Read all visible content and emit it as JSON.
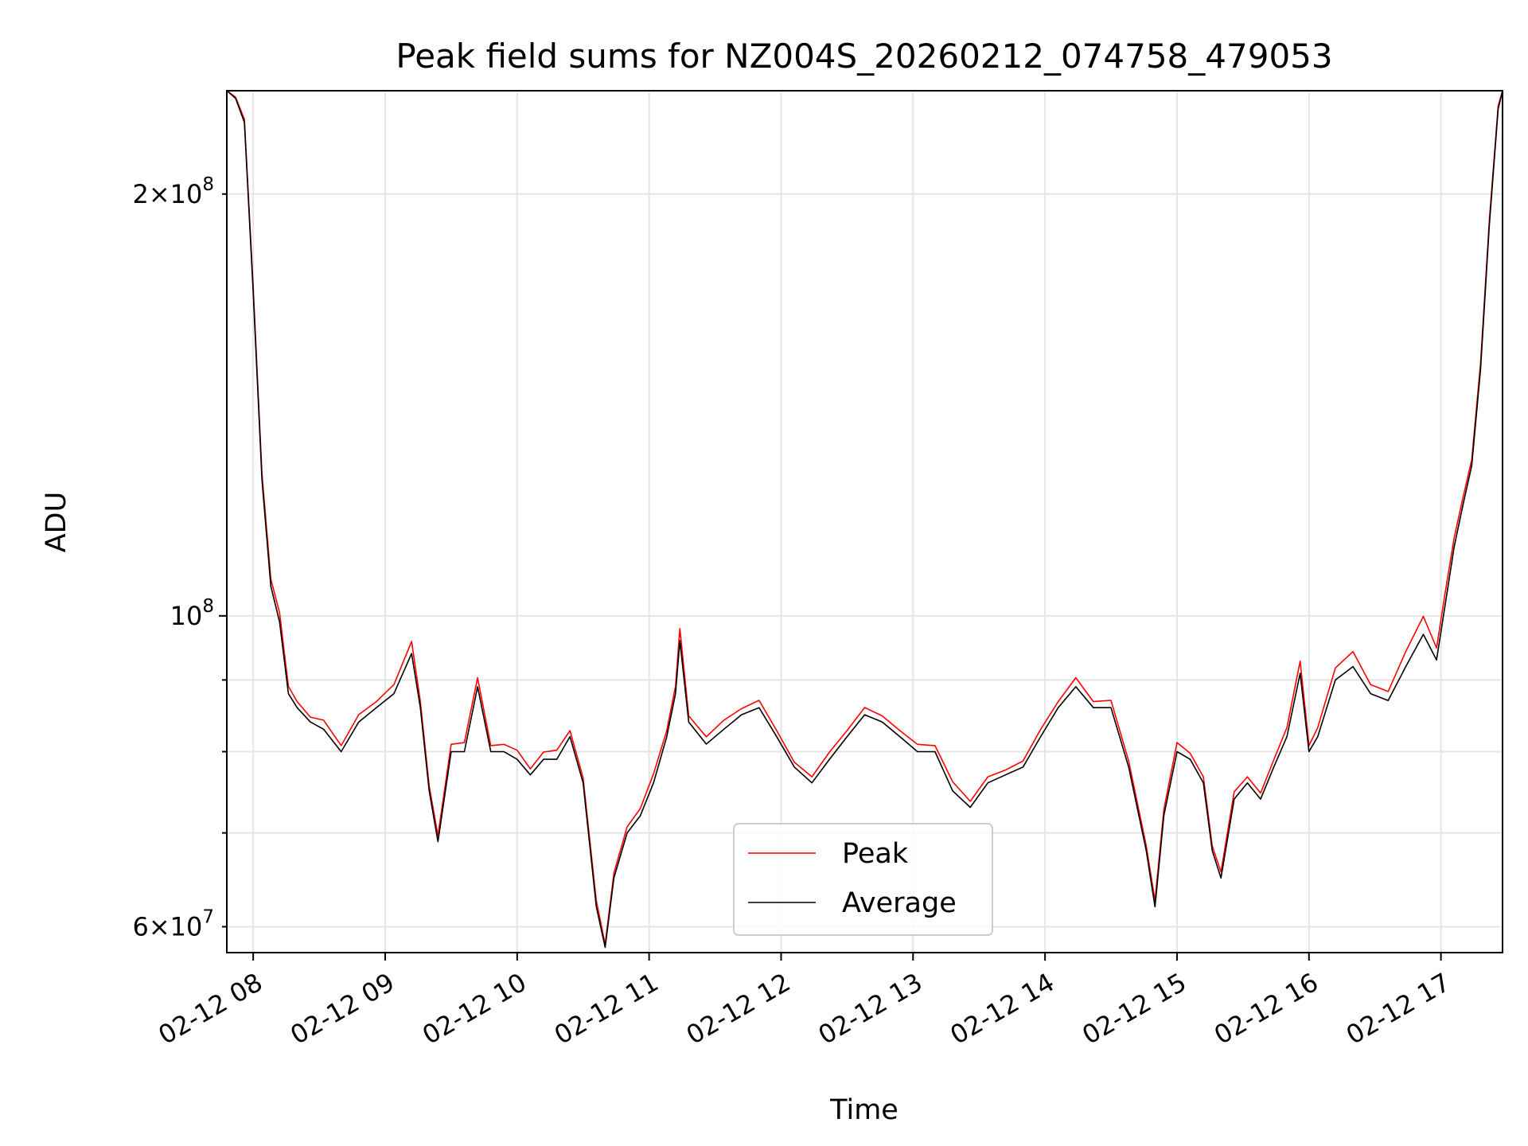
{
  "chart_data": {
    "type": "line",
    "title": "Peak field sums for NZ004S_20260212_074758_479053",
    "xlabel": "Time",
    "ylabel": "ADU",
    "x_ticks": [
      "02-12 08",
      "02-12 09",
      "02-12 10",
      "02-12 11",
      "02-12 12",
      "02-12 13",
      "02-12 14",
      "02-12 15",
      "02-12 16",
      "02-12 17"
    ],
    "y_tick_labels": {
      "major": [
        {
          "value": 100000000,
          "mantissa": "",
          "exponent": "8"
        }
      ],
      "minor": [
        {
          "value": 60000000,
          "mantissa": "6",
          "exponent": "7"
        },
        {
          "value": 200000000,
          "mantissa": "2",
          "exponent": "8"
        }
      ],
      "minor_unlabeled": [
        70000000,
        80000000,
        90000000
      ]
    },
    "xlim": [
      "2026-02-12 07:48",
      "2026-02-12 17:28"
    ],
    "ylim": [
      57500000,
      237000000
    ],
    "y_scale": "log",
    "grid": true,
    "legend_position": "lower-center",
    "series": [
      {
        "name": "Peak",
        "color": "#ff0000",
        "width": 1.6
      },
      {
        "name": "Average",
        "color": "#000000",
        "width": 1.6
      }
    ],
    "x": [
      "07:48",
      "07:52",
      "07:56",
      "08:00",
      "08:04",
      "08:08",
      "08:12",
      "08:16",
      "08:20",
      "08:26",
      "08:32",
      "08:40",
      "08:48",
      "08:56",
      "09:04",
      "09:12",
      "09:16",
      "09:20",
      "09:24",
      "09:30",
      "09:36",
      "09:42",
      "09:48",
      "09:54",
      "10:00",
      "10:06",
      "10:12",
      "10:18",
      "10:24",
      "10:30",
      "10:36",
      "10:40",
      "10:44",
      "10:50",
      "10:56",
      "11:02",
      "11:08",
      "11:12",
      "11:14",
      "11:18",
      "11:26",
      "11:34",
      "11:42",
      "11:50",
      "11:58",
      "12:06",
      "12:14",
      "12:22",
      "12:30",
      "12:38",
      "12:46",
      "12:54",
      "13:02",
      "13:10",
      "13:18",
      "13:26",
      "13:34",
      "13:42",
      "13:50",
      "13:58",
      "14:06",
      "14:14",
      "14:22",
      "14:30",
      "14:38",
      "14:46",
      "14:50",
      "14:54",
      "15:00",
      "15:06",
      "15:12",
      "15:16",
      "15:20",
      "15:26",
      "15:32",
      "15:38",
      "15:44",
      "15:50",
      "15:56",
      "16:00",
      "16:04",
      "16:12",
      "16:20",
      "16:28",
      "16:36",
      "16:44",
      "16:52",
      "16:58",
      "17:02",
      "17:06",
      "17:10",
      "17:14",
      "17:18",
      "17:22",
      "17:26",
      "17:28"
    ],
    "values": [
      237000000,
      234000000,
      225000000,
      170000000,
      125000000,
      105000000,
      99000000,
      88000000,
      86000000,
      84000000,
      83000000,
      80000000,
      84000000,
      86000000,
      88000000,
      94000000,
      86000000,
      75000000,
      69000000,
      80000000,
      80000000,
      89000000,
      80000000,
      80000000,
      79000000,
      77000000,
      79000000,
      79000000,
      82000000,
      76000000,
      62000000,
      58000000,
      65000000,
      70000000,
      72000000,
      76000000,
      82000000,
      88000000,
      96000000,
      84000000,
      81000000,
      83000000,
      85000000,
      86000000,
      82000000,
      78000000,
      76000000,
      79000000,
      82000000,
      85000000,
      84000000,
      82000000,
      80000000,
      80000000,
      75000000,
      73000000,
      76000000,
      77000000,
      78000000,
      82000000,
      86000000,
      89000000,
      86000000,
      86000000,
      78000000,
      68000000,
      62000000,
      72000000,
      80000000,
      79000000,
      76000000,
      68000000,
      65000000,
      74000000,
      76000000,
      74000000,
      78000000,
      82000000,
      91000000,
      80000000,
      82000000,
      90000000,
      92000000,
      88000000,
      87000000,
      92000000,
      97000000,
      93000000,
      102000000,
      112000000,
      120000000,
      128000000,
      150000000,
      190000000,
      230000000,
      237000000
    ],
    "peak_offsets_pct": [
      0,
      0.2,
      0.5,
      0.8,
      1.0,
      1.2,
      1.5,
      1.2,
      1.0,
      0.8,
      1.5,
      1.0,
      1.2,
      1.0,
      1.5,
      2.0,
      1.0,
      0.8,
      1.0,
      1.2,
      1.5,
      1.5,
      1.0,
      1.2,
      1.5,
      1.0,
      1.2,
      1.5,
      1.0,
      0.8,
      1.0,
      0.5,
      0.8,
      1.0,
      1.2,
      1.5,
      1.0,
      1.2,
      2.0,
      1.0,
      1.2,
      1.5,
      1.0,
      1.2,
      1.0,
      0.8,
      1.0,
      1.2,
      1.0,
      1.2,
      1.0,
      1.0,
      1.2,
      1.0,
      1.5,
      1.0,
      1.0,
      0.8,
      1.0,
      1.2,
      1.0,
      1.5,
      1.0,
      1.2,
      1.0,
      0.8,
      1.0,
      1.0,
      1.5,
      1.0,
      1.0,
      0.8,
      1.0,
      1.2,
      1.0,
      1.0,
      1.2,
      1.5,
      2.0,
      1.0,
      1.5,
      2.0,
      2.5,
      1.5,
      1.5,
      2.5,
      3.0,
      2.0,
      2.0,
      1.5,
      1.2,
      1.0,
      1.0,
      0.8,
      0.5,
      0
    ]
  }
}
